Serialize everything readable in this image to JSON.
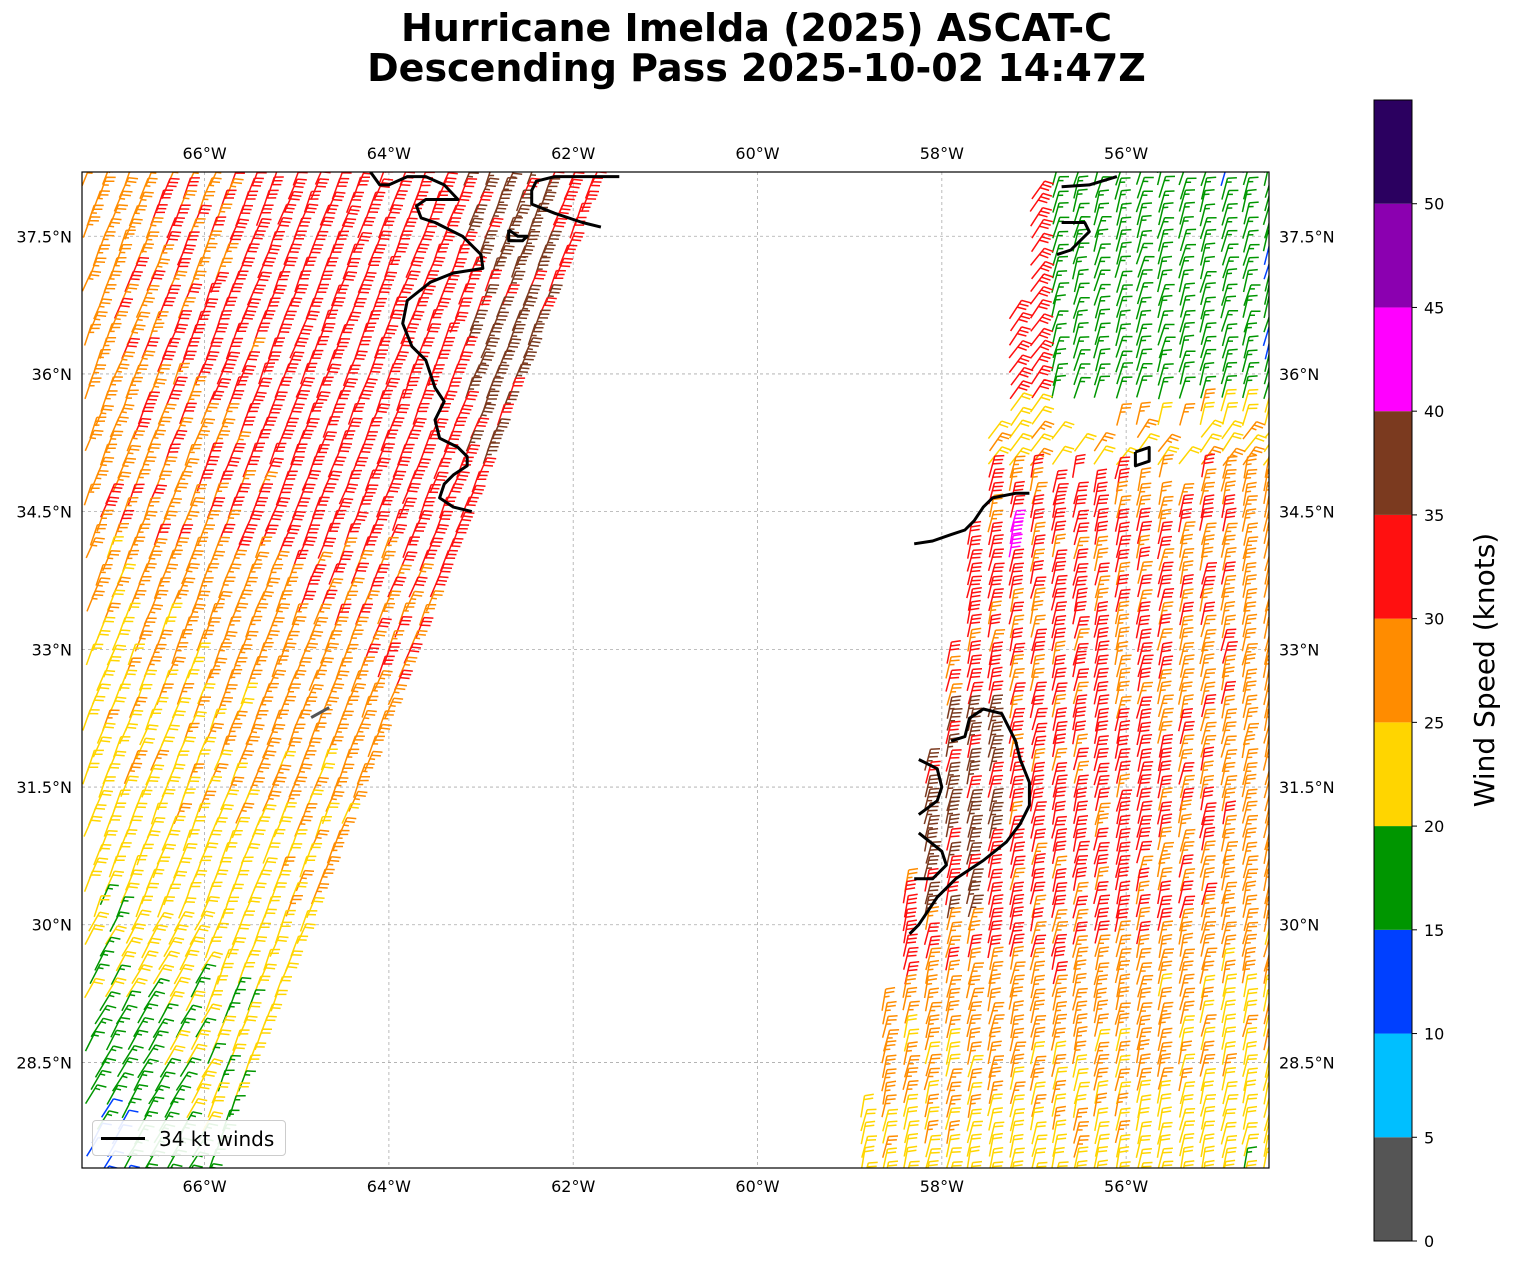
{
  "title": {
    "line1": "Hurricane Imelda (2025) ASCAT-C",
    "line2": "Descending Pass 2025-10-02 14:47Z"
  },
  "map": {
    "lon_range": [
      -67.33,
      -54.45
    ],
    "lat_range": [
      27.35,
      38.2
    ],
    "lon_ticks": [
      {
        "value": -66,
        "label": "66°W"
      },
      {
        "value": -64,
        "label": "64°W"
      },
      {
        "value": -62,
        "label": "62°W"
      },
      {
        "value": -60,
        "label": "60°W"
      },
      {
        "value": -58,
        "label": "58°W"
      },
      {
        "value": -56,
        "label": "56°W"
      }
    ],
    "lat_ticks": [
      {
        "value": 37.5,
        "label": "37.5°N"
      },
      {
        "value": 36,
        "label": "36°N"
      },
      {
        "value": 34.5,
        "label": "34.5°N"
      },
      {
        "value": 33,
        "label": "33°N"
      },
      {
        "value": 31.5,
        "label": "31.5°N"
      },
      {
        "value": 30,
        "label": "30°N"
      },
      {
        "value": 28.5,
        "label": "28.5°N"
      }
    ],
    "gridlines": true,
    "swaths": [
      {
        "name": "west",
        "top_lon_west": -67.33,
        "top_lon_east": -61.7,
        "bottom_lon_west": -67.33,
        "bottom_lon_east": -65.9
      },
      {
        "name": "east",
        "top_lon_west": -56.98,
        "top_lon_east": -54.45,
        "bottom_lon_west": -58.98,
        "bottom_lon_east": -54.45
      }
    ],
    "contour_34kt": [
      [
        [
          -64.2,
          38.2
        ],
        [
          -64.1,
          38.06
        ],
        [
          -64.0,
          38.06
        ],
        [
          -63.8,
          38.15
        ],
        [
          -63.6,
          38.15
        ],
        [
          -63.4,
          38.06
        ],
        [
          -63.25,
          37.9
        ],
        [
          -63.5,
          37.9
        ],
        [
          -63.6,
          37.9
        ],
        [
          -63.7,
          37.83
        ],
        [
          -63.65,
          37.7
        ],
        [
          -63.5,
          37.65
        ],
        [
          -63.2,
          37.5
        ],
        [
          -63.0,
          37.3
        ],
        [
          -62.98,
          37.15
        ],
        [
          -63.3,
          37.1
        ],
        [
          -63.55,
          37.0
        ],
        [
          -63.8,
          36.8
        ],
        [
          -63.85,
          36.55
        ],
        [
          -63.75,
          36.3
        ],
        [
          -63.6,
          36.15
        ],
        [
          -63.5,
          35.85
        ],
        [
          -63.4,
          35.7
        ],
        [
          -63.5,
          35.5
        ],
        [
          -63.45,
          35.3
        ],
        [
          -63.25,
          35.2
        ],
        [
          -63.15,
          35.1
        ],
        [
          -63.15,
          35.0
        ],
        [
          -63.3,
          34.9
        ],
        [
          -63.4,
          34.8
        ],
        [
          -63.45,
          34.65
        ],
        [
          -63.3,
          34.55
        ],
        [
          -63.1,
          34.5
        ]
      ],
      [
        [
          -62.7,
          37.57
        ],
        [
          -62.6,
          37.5
        ],
        [
          -62.5,
          37.5
        ],
        [
          -62.55,
          37.45
        ],
        [
          -62.7,
          37.45
        ],
        [
          -62.7,
          37.57
        ]
      ],
      [
        [
          -61.5,
          38.15
        ],
        [
          -61.9,
          38.15
        ],
        [
          -62.2,
          38.15
        ],
        [
          -62.4,
          38.1
        ],
        [
          -62.45,
          38.0
        ],
        [
          -62.45,
          37.85
        ],
        [
          -62.2,
          37.75
        ],
        [
          -61.9,
          37.65
        ],
        [
          -61.7,
          37.6
        ]
      ],
      [
        [
          -56.1,
          38.15
        ],
        [
          -56.4,
          38.06
        ],
        [
          -56.7,
          38.04
        ]
      ],
      [
        [
          -56.7,
          37.65
        ],
        [
          -56.45,
          37.65
        ],
        [
          -56.4,
          37.55
        ],
        [
          -56.5,
          37.45
        ],
        [
          -56.6,
          37.35
        ],
        [
          -56.75,
          37.3
        ]
      ],
      [
        [
          -55.9,
          35.15
        ],
        [
          -55.75,
          35.2
        ],
        [
          -55.75,
          35.05
        ],
        [
          -55.9,
          35.0
        ],
        [
          -55.9,
          35.15
        ]
      ],
      [
        [
          -57.05,
          34.7
        ],
        [
          -57.2,
          34.7
        ],
        [
          -57.45,
          34.65
        ],
        [
          -57.55,
          34.55
        ],
        [
          -57.65,
          34.4
        ],
        [
          -57.75,
          34.3
        ],
        [
          -57.9,
          34.25
        ],
        [
          -58.1,
          34.18
        ],
        [
          -58.3,
          34.15
        ]
      ],
      [
        [
          -57.9,
          32.0
        ],
        [
          -57.75,
          32.05
        ],
        [
          -57.7,
          32.25
        ],
        [
          -57.55,
          32.35
        ],
        [
          -57.35,
          32.3
        ],
        [
          -57.2,
          32.0
        ],
        [
          -57.15,
          31.8
        ],
        [
          -57.05,
          31.55
        ],
        [
          -57.05,
          31.3
        ],
        [
          -57.15,
          31.1
        ],
        [
          -57.3,
          30.9
        ],
        [
          -57.55,
          30.7
        ],
        [
          -57.85,
          30.5
        ],
        [
          -58.05,
          30.3
        ],
        [
          -58.25,
          30.0
        ],
        [
          -58.35,
          29.9
        ]
      ],
      [
        [
          -58.25,
          31.8
        ],
        [
          -58.05,
          31.7
        ],
        [
          -58.0,
          31.5
        ],
        [
          -58.05,
          31.35
        ],
        [
          -58.25,
          31.2
        ]
      ],
      [
        [
          -58.25,
          31.0
        ],
        [
          -58.0,
          30.8
        ],
        [
          -57.95,
          30.65
        ],
        [
          -58.1,
          30.5
        ],
        [
          -58.3,
          30.5
        ]
      ]
    ],
    "small_feature": {
      "lon": -64.8,
      "lat": 32.3,
      "color": "#555555"
    }
  },
  "colorbar": {
    "label": "Wind Speed (knots)",
    "bins": [
      {
        "from": 0,
        "to": 5,
        "color": "#555555"
      },
      {
        "from": 5,
        "to": 10,
        "color": "#00BFFF"
      },
      {
        "from": 10,
        "to": 15,
        "color": "#0040FF"
      },
      {
        "from": 15,
        "to": 20,
        "color": "#009600"
      },
      {
        "from": 20,
        "to": 25,
        "color": "#FFD500"
      },
      {
        "from": 25,
        "to": 30,
        "color": "#FF8C00"
      },
      {
        "from": 30,
        "to": 35,
        "color": "#FF1010"
      },
      {
        "from": 35,
        "to": 40,
        "color": "#7B3A1F"
      },
      {
        "from": 40,
        "to": 45,
        "color": "#FF00FF"
      },
      {
        "from": 45,
        "to": 50,
        "color": "#8B00B0"
      },
      {
        "from": 50,
        "to": 55,
        "color": "#2B0060"
      }
    ],
    "ticks": [
      0,
      5,
      10,
      15,
      20,
      25,
      30,
      35,
      40,
      45,
      50
    ]
  },
  "legend": {
    "label": "34 kt winds",
    "line_color": "#000000"
  }
}
